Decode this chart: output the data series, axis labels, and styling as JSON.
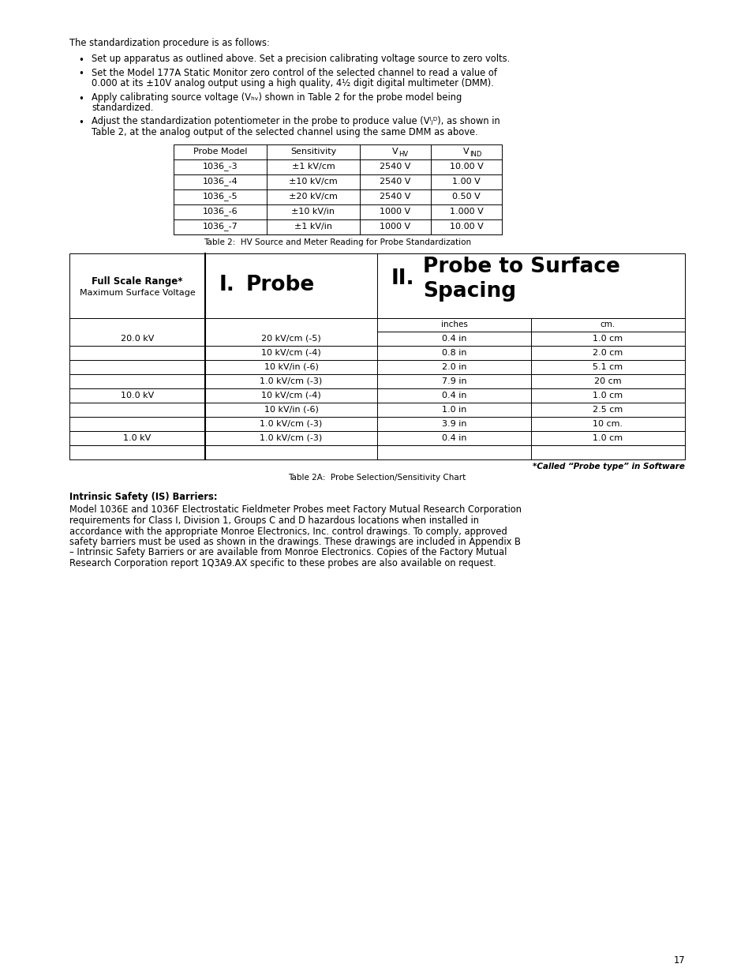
{
  "bg_color": "#ffffff",
  "page_number": "17",
  "intro_text": "The standardization procedure is as follows:",
  "bullet1": "Set up apparatus as outlined above. Set a precision calibrating voltage source to zero volts.",
  "bullet2a": "Set the Model 177A Static Monitor zero control of the selected channel to read a value of",
  "bullet2b": "0.000 at its ±10V analog output using a high quality, 4½ digit digital multimeter (DMM).",
  "bullet3a": "Apply calibrating source voltage (V",
  "bullet3a_sub": "HV",
  "bullet3a_rest": ") shown in Table 2 for the probe model being",
  "bullet3b": "standardized.",
  "bullet4a": "Adjust the standardization potentiometer in the probe to produce value (V",
  "bullet4a_sub": "IND",
  "bullet4a_rest": "), as shown in",
  "bullet4b": "Table 2, at the analog output of the selected channel using the same DMM as above.",
  "table1_caption": "Table 2:  HV Source and Meter Reading for Probe Standardization",
  "table1_headers": [
    "Probe Model",
    "Sensitivity",
    "VHV",
    "VIND"
  ],
  "table1_header_subs": [
    null,
    null,
    "HV",
    "IND"
  ],
  "table1_rows": [
    [
      "1036_-3",
      "±1 kV/cm",
      "2540 V",
      "10.00 V"
    ],
    [
      "1036_-4",
      "±10 kV/cm",
      "2540 V",
      "1.00 V"
    ],
    [
      "1036_-5",
      "±20 kV/cm",
      "2540 V",
      "0.50 V"
    ],
    [
      "1036_-6",
      "±10 kV/in",
      "1000 V",
      "1.000 V"
    ],
    [
      "1036_-7",
      "±1 kV/in",
      "1000 V",
      "10.00 V"
    ]
  ],
  "table2_caption": "Table 2A:  Probe Selection/Sensitivity Chart",
  "table2_note": "*Called “Probe type” in Software",
  "table2_rows": [
    [
      "20.0 kV",
      "20 kV/cm (-5)",
      "0.4 in",
      "1.0 cm"
    ],
    [
      "",
      "10 kV/cm (-4)",
      "0.8 in",
      "2.0 cm"
    ],
    [
      "",
      "10 kV/in (-6)",
      "2.0 in",
      "5.1 cm"
    ],
    [
      "",
      "1.0 kV/cm (-3)",
      "7.9 in",
      "20 cm"
    ],
    [
      "10.0 kV",
      "10 kV/cm (-4)",
      "0.4 in",
      "1.0 cm"
    ],
    [
      "",
      "10 kV/in (-6)",
      "1.0 in",
      "2.5 cm"
    ],
    [
      "",
      "1.0 kV/cm (-3)",
      "3.9 in",
      "10 cm."
    ],
    [
      "1.0 kV",
      "1.0 kV/cm (-3)",
      "0.4 in",
      "1.0 cm"
    ],
    [
      "",
      "",
      "",
      ""
    ]
  ],
  "is_heading": "Intrinsic Safety (IS) Barriers:",
  "is_lines": [
    "Model 1036E and 1036F Electrostatic Fieldmeter Probes meet Factory Mutual Research Corporation",
    "requirements for Class I, Division 1, Groups C and D hazardous locations when installed in",
    "accordance with the appropriate Monroe Electronics, Inc. control drawings. To comply, approved",
    "safety barriers must be used as shown in the drawings. These drawings are included in Appendix B",
    "– Intrinsic Safety Barriers or are available from Monroe Electronics. Copies of the Factory Mutual",
    "Research Corporation report 1Q3A9.AX specific to these probes are also available on request."
  ]
}
